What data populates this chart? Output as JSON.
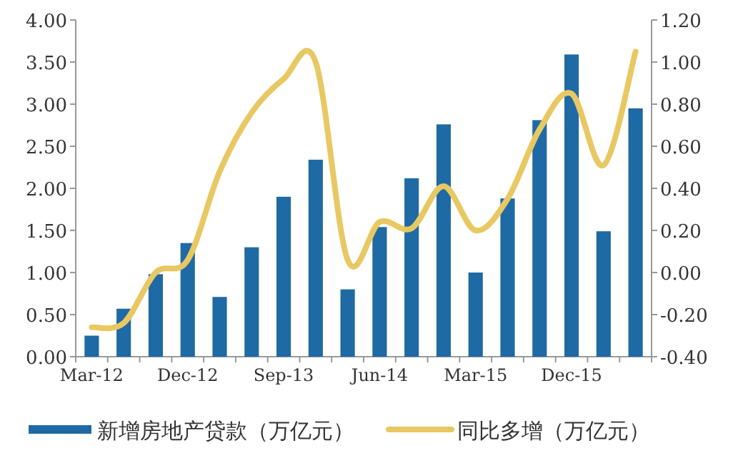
{
  "chart_data": {
    "type": "bar",
    "categories": [
      "Mar-12",
      null,
      null,
      "Dec-12",
      null,
      null,
      "Sep-13",
      null,
      null,
      "Jun-14",
      null,
      null,
      "Mar-15",
      null,
      null,
      "Dec-15",
      null,
      null
    ],
    "series": [
      {
        "name": "新增房地产贷款（万亿元）",
        "color": "#1f6aa5",
        "values": [
          0.25,
          0.57,
          0.98,
          1.35,
          0.71,
          1.3,
          1.9,
          2.34,
          0.8,
          1.54,
          2.12,
          2.76,
          1.0,
          1.88,
          2.81,
          3.59,
          1.49,
          2.95
        ]
      },
      {
        "name": "同比多增（万亿元）",
        "type": "line",
        "axis": "y2",
        "color": "#e8c862",
        "values": [
          -0.26,
          -0.24,
          0.0,
          0.06,
          0.48,
          0.76,
          0.92,
          1.0,
          0.06,
          0.24,
          0.21,
          0.41,
          0.2,
          0.35,
          0.68,
          0.85,
          0.51,
          1.05
        ]
      }
    ],
    "ylim": [
      0,
      4
    ],
    "yticks": [
      {
        "value": 0,
        "label": "0.00"
      },
      {
        "value": 0.5,
        "label": "0.50"
      },
      {
        "value": 1,
        "label": "1.00"
      },
      {
        "value": 1.5,
        "label": "1.50"
      },
      {
        "value": 2,
        "label": "2.00"
      },
      {
        "value": 2.5,
        "label": "2.50"
      },
      {
        "value": 3,
        "label": "3.00"
      },
      {
        "value": 3.5,
        "label": "3.50"
      },
      {
        "value": 4,
        "label": "4.00"
      }
    ],
    "y2lim": [
      -0.4,
      1.2
    ],
    "y2ticks": [
      {
        "value": -0.4,
        "label": "-0.40"
      },
      {
        "value": -0.2,
        "label": "-0.20"
      },
      {
        "value": 0,
        "label": "0.00"
      },
      {
        "value": 0.2,
        "label": "0.20"
      },
      {
        "value": 0.4,
        "label": "0.40"
      },
      {
        "value": 0.6,
        "label": "0.60"
      },
      {
        "value": 0.8,
        "label": "0.80"
      },
      {
        "value": 1,
        "label": "1.00"
      },
      {
        "value": 1.2,
        "label": "1.20"
      }
    ],
    "legend": "bottom",
    "grid": false
  }
}
